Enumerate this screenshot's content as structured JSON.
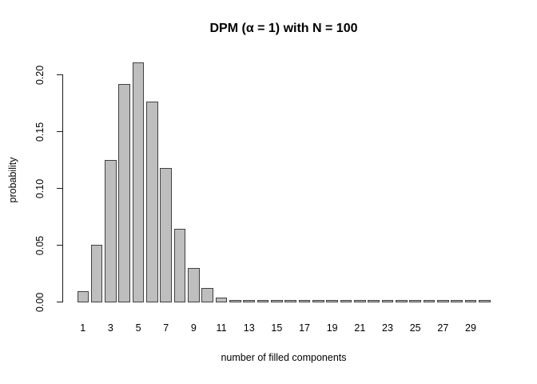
{
  "chart_data": {
    "type": "bar",
    "title": "DPM (α = 1) with N = 100",
    "xlabel": "number of filled components",
    "ylabel": "probability",
    "categories": [
      1,
      2,
      3,
      4,
      5,
      6,
      7,
      8,
      9,
      10,
      11,
      12,
      13,
      14,
      15,
      16,
      17,
      18,
      19,
      20,
      21,
      22,
      23,
      24,
      25,
      26,
      27,
      28,
      29,
      30
    ],
    "values": [
      0.01,
      0.051,
      0.125,
      0.192,
      0.211,
      0.177,
      0.118,
      0.065,
      0.03,
      0.0125,
      0.0045,
      0.0015,
      0.0005,
      0.00015,
      4e-05,
      1e-05,
      0,
      0,
      0,
      0,
      0,
      0,
      0,
      0,
      0,
      0,
      0,
      0,
      0,
      0
    ],
    "x_tick_labels": [
      "1",
      "3",
      "5",
      "7",
      "9",
      "11",
      "13",
      "15",
      "17",
      "19",
      "21",
      "23",
      "25",
      "27",
      "29"
    ],
    "y_ticks": [
      {
        "label": "0.00",
        "value": 0.0
      },
      {
        "label": "0.05",
        "value": 0.05
      },
      {
        "label": "0.10",
        "value": 0.1
      },
      {
        "label": "0.15",
        "value": 0.15
      },
      {
        "label": "0.20",
        "value": 0.2
      }
    ],
    "ylim": [
      0,
      0.2118
    ],
    "grid": false,
    "legend_position": "none",
    "bar_fill_color": "#BEBEBE",
    "bar_border_color": "#404040",
    "axis_color": "#1a1a1a",
    "background_color": "#FFFFFF"
  }
}
